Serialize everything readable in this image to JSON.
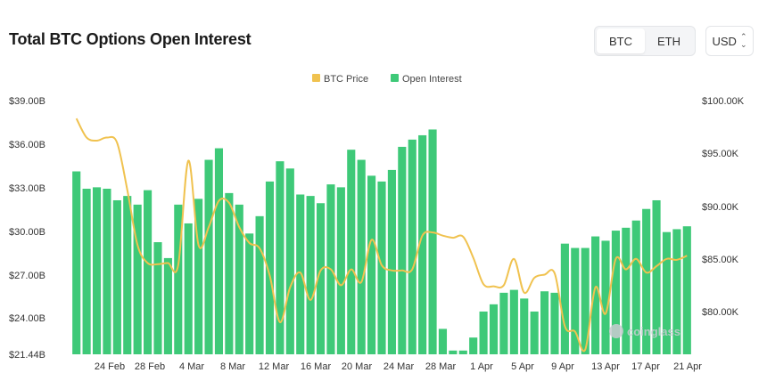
{
  "header": {
    "title": "Total BTC Options Open Interest",
    "asset_tabs": [
      {
        "label": "BTC",
        "active": true
      },
      {
        "label": "ETH",
        "active": false
      }
    ],
    "currency": "USD"
  },
  "watermark": "coinglass",
  "colors": {
    "bar": "#3ec978",
    "price_line": "#f0c24f"
  },
  "chart_data": {
    "type": "bar",
    "title": "Total BTC Options Open Interest",
    "legend": {
      "position": "top-center",
      "items": [
        {
          "name": "BTC Price",
          "color": "#f0c24f",
          "kind": "line"
        },
        {
          "name": "Open Interest",
          "color": "#3ec978",
          "kind": "bar"
        }
      ]
    },
    "x_tick_labels": [
      "24 Feb",
      "28 Feb",
      "4 Mar",
      "8 Mar",
      "12 Mar",
      "16 Mar",
      "20 Mar",
      "24 Mar",
      "28 Mar",
      "1 Apr",
      "5 Apr",
      "9 Apr",
      "13 Apr",
      "17 Apr",
      "21 Apr"
    ],
    "left_axis": {
      "ticks": [
        "$39.00B",
        "$36.00B",
        "$33.00B",
        "$30.00B",
        "$27.00B",
        "$24.00B",
        "$21.44B"
      ],
      "min": 21.44,
      "max": 39.0,
      "unit": "B USD"
    },
    "right_axis": {
      "ticks": [
        "$100.00K",
        "$95.00K",
        "$90.00K",
        "$85.00K",
        "$80.00K"
      ],
      "unit": "K USD"
    },
    "series": [
      {
        "name": "Open Interest",
        "type": "bar",
        "axis": "left",
        "values": [
          34.1,
          32.9,
          33.0,
          32.9,
          32.1,
          32.4,
          31.8,
          32.8,
          29.2,
          28.1,
          31.8,
          30.5,
          32.2,
          34.9,
          35.7,
          32.6,
          31.8,
          29.8,
          31.0,
          33.4,
          34.8,
          34.3,
          32.5,
          32.4,
          31.9,
          33.2,
          33.0,
          35.6,
          34.9,
          33.8,
          33.4,
          34.2,
          35.8,
          36.3,
          36.6,
          37.0,
          23.2,
          21.7,
          21.7,
          22.6,
          24.4,
          24.9,
          25.7,
          25.9,
          25.3,
          24.4,
          25.8,
          25.7,
          29.1,
          28.8,
          28.8,
          29.6,
          29.3,
          30.0,
          30.2,
          30.7,
          31.5,
          32.1,
          29.9,
          30.1,
          30.3
        ]
      },
      {
        "name": "BTC Price",
        "type": "line",
        "axis": "right",
        "values": [
          98.3,
          96.5,
          96.2,
          96.5,
          96.0,
          91.5,
          86.3,
          84.6,
          84.5,
          84.6,
          84.4,
          94.3,
          86.3,
          88.0,
          90.5,
          90.3,
          88.0,
          86.5,
          86.0,
          83.4,
          79.0,
          82.3,
          83.7,
          81.1,
          83.9,
          84.0,
          82.5,
          84.0,
          82.8,
          86.8,
          84.4,
          83.9,
          83.9,
          84.0,
          87.2,
          87.5,
          87.2,
          87.0,
          87.1,
          85.1,
          82.6,
          82.4,
          82.5,
          85.0,
          81.8,
          83.2,
          83.5,
          83.6,
          78.6,
          78.1,
          76.4,
          82.3,
          79.8,
          85.0,
          84.0,
          85.0,
          83.7,
          84.3,
          85.0,
          84.9,
          85.3
        ]
      }
    ]
  }
}
